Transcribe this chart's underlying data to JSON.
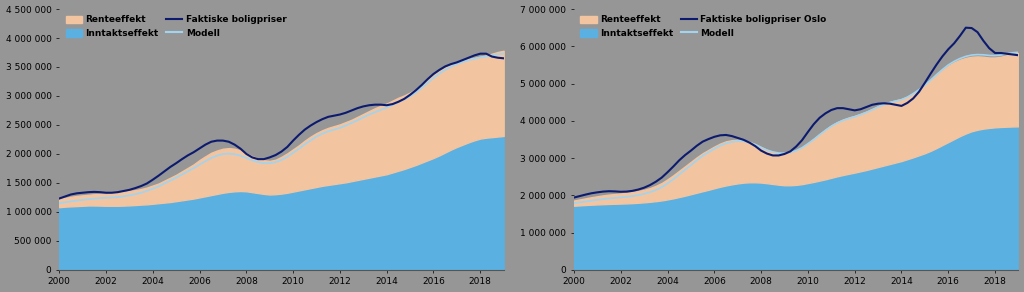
{
  "background_color": "#969696",
  "years_left": [
    2000.0,
    2000.25,
    2000.5,
    2000.75,
    2001.0,
    2001.25,
    2001.5,
    2001.75,
    2002.0,
    2002.25,
    2002.5,
    2002.75,
    2003.0,
    2003.25,
    2003.5,
    2003.75,
    2004.0,
    2004.25,
    2004.5,
    2004.75,
    2005.0,
    2005.25,
    2005.5,
    2005.75,
    2006.0,
    2006.25,
    2006.5,
    2006.75,
    2007.0,
    2007.25,
    2007.5,
    2007.75,
    2008.0,
    2008.25,
    2008.5,
    2008.75,
    2009.0,
    2009.25,
    2009.5,
    2009.75,
    2010.0,
    2010.25,
    2010.5,
    2010.75,
    2011.0,
    2011.25,
    2011.5,
    2011.75,
    2012.0,
    2012.25,
    2012.5,
    2012.75,
    2013.0,
    2013.25,
    2013.5,
    2013.75,
    2014.0,
    2014.25,
    2014.5,
    2014.75,
    2015.0,
    2015.25,
    2015.5,
    2015.75,
    2016.0,
    2016.25,
    2016.5,
    2016.75,
    2017.0,
    2017.25,
    2017.5,
    2017.75,
    2018.0,
    2018.25,
    2018.5,
    2018.75,
    2019.0
  ],
  "left_inntekt": [
    1080000,
    1090000,
    1095000,
    1100000,
    1105000,
    1110000,
    1110000,
    1108000,
    1105000,
    1105000,
    1105000,
    1108000,
    1112000,
    1118000,
    1125000,
    1130000,
    1140000,
    1150000,
    1160000,
    1170000,
    1185000,
    1200000,
    1215000,
    1230000,
    1250000,
    1270000,
    1290000,
    1310000,
    1330000,
    1345000,
    1355000,
    1360000,
    1355000,
    1340000,
    1325000,
    1310000,
    1300000,
    1305000,
    1315000,
    1330000,
    1350000,
    1370000,
    1390000,
    1410000,
    1430000,
    1450000,
    1465000,
    1480000,
    1495000,
    1510000,
    1530000,
    1550000,
    1570000,
    1590000,
    1610000,
    1630000,
    1650000,
    1680000,
    1710000,
    1740000,
    1775000,
    1810000,
    1850000,
    1890000,
    1930000,
    1975000,
    2025000,
    2075000,
    2120000,
    2160000,
    2200000,
    2235000,
    2265000,
    2280000,
    2290000,
    2300000,
    2310000
  ],
  "left_rente_top": [
    1220000,
    1240000,
    1260000,
    1275000,
    1285000,
    1295000,
    1305000,
    1310000,
    1315000,
    1320000,
    1330000,
    1345000,
    1360000,
    1375000,
    1395000,
    1420000,
    1455000,
    1490000,
    1540000,
    1590000,
    1640000,
    1700000,
    1760000,
    1820000,
    1895000,
    1960000,
    2020000,
    2060000,
    2090000,
    2100000,
    2090000,
    2060000,
    2010000,
    1960000,
    1920000,
    1890000,
    1880000,
    1900000,
    1950000,
    2010000,
    2080000,
    2150000,
    2230000,
    2300000,
    2360000,
    2410000,
    2450000,
    2480000,
    2510000,
    2550000,
    2590000,
    2640000,
    2690000,
    2740000,
    2790000,
    2830000,
    2870000,
    2920000,
    2970000,
    3010000,
    3060000,
    3120000,
    3200000,
    3280000,
    3360000,
    3430000,
    3490000,
    3540000,
    3580000,
    3610000,
    3640000,
    3660000,
    3680000,
    3700000,
    3730000,
    3760000,
    3780000
  ],
  "left_faktiske": [
    1230000,
    1265000,
    1300000,
    1320000,
    1330000,
    1340000,
    1345000,
    1340000,
    1330000,
    1330000,
    1340000,
    1360000,
    1380000,
    1410000,
    1445000,
    1490000,
    1555000,
    1625000,
    1700000,
    1775000,
    1840000,
    1910000,
    1975000,
    2030000,
    2095000,
    2160000,
    2210000,
    2230000,
    2230000,
    2210000,
    2160000,
    2090000,
    2000000,
    1940000,
    1910000,
    1910000,
    1940000,
    1980000,
    2040000,
    2120000,
    2230000,
    2330000,
    2420000,
    2490000,
    2550000,
    2600000,
    2640000,
    2660000,
    2680000,
    2710000,
    2750000,
    2790000,
    2820000,
    2840000,
    2850000,
    2850000,
    2840000,
    2860000,
    2900000,
    2950000,
    3020000,
    3100000,
    3190000,
    3290000,
    3380000,
    3450000,
    3510000,
    3550000,
    3580000,
    3620000,
    3660000,
    3700000,
    3730000,
    3730000,
    3680000,
    3660000,
    3650000
  ],
  "left_modell": [
    1150000,
    1165000,
    1180000,
    1195000,
    1207000,
    1218000,
    1228000,
    1237000,
    1243000,
    1248000,
    1255000,
    1268000,
    1284000,
    1305000,
    1330000,
    1362000,
    1400000,
    1440000,
    1490000,
    1540000,
    1590000,
    1645000,
    1700000,
    1755000,
    1815000,
    1875000,
    1930000,
    1970000,
    1998000,
    2005000,
    1995000,
    1970000,
    1930000,
    1890000,
    1858000,
    1840000,
    1840000,
    1858000,
    1895000,
    1950000,
    2020000,
    2090000,
    2165000,
    2235000,
    2300000,
    2350000,
    2390000,
    2420000,
    2450000,
    2490000,
    2535000,
    2580000,
    2630000,
    2680000,
    2720000,
    2760000,
    2800000,
    2845000,
    2895000,
    2940000,
    2995000,
    3060000,
    3140000,
    3225000,
    3310000,
    3385000,
    3450000,
    3505000,
    3550000,
    3585000,
    3615000,
    3640000,
    3665000,
    3680000,
    3700000,
    3720000,
    3730000
  ],
  "years_right": [
    2000.0,
    2000.25,
    2000.5,
    2000.75,
    2001.0,
    2001.25,
    2001.5,
    2001.75,
    2002.0,
    2002.25,
    2002.5,
    2002.75,
    2003.0,
    2003.25,
    2003.5,
    2003.75,
    2004.0,
    2004.25,
    2004.5,
    2004.75,
    2005.0,
    2005.25,
    2005.5,
    2005.75,
    2006.0,
    2006.25,
    2006.5,
    2006.75,
    2007.0,
    2007.25,
    2007.5,
    2007.75,
    2008.0,
    2008.25,
    2008.5,
    2008.75,
    2009.0,
    2009.25,
    2009.5,
    2009.75,
    2010.0,
    2010.25,
    2010.5,
    2010.75,
    2011.0,
    2011.25,
    2011.5,
    2011.75,
    2012.0,
    2012.25,
    2012.5,
    2012.75,
    2013.0,
    2013.25,
    2013.5,
    2013.75,
    2014.0,
    2014.25,
    2014.5,
    2014.75,
    2015.0,
    2015.25,
    2015.5,
    2015.75,
    2016.0,
    2016.25,
    2016.5,
    2016.75,
    2017.0,
    2017.25,
    2017.5,
    2017.75,
    2018.0,
    2018.25,
    2018.5,
    2018.75,
    2019.0
  ],
  "right_inntekt": [
    1720000,
    1730000,
    1740000,
    1748000,
    1755000,
    1762000,
    1768000,
    1773000,
    1778000,
    1783000,
    1790000,
    1800000,
    1812000,
    1826000,
    1843000,
    1863000,
    1890000,
    1920000,
    1955000,
    1990000,
    2030000,
    2070000,
    2110000,
    2148000,
    2190000,
    2230000,
    2265000,
    2295000,
    2320000,
    2340000,
    2350000,
    2350000,
    2342000,
    2325000,
    2305000,
    2285000,
    2270000,
    2270000,
    2280000,
    2300000,
    2330000,
    2360000,
    2395000,
    2430000,
    2470000,
    2510000,
    2545000,
    2578000,
    2610000,
    2645000,
    2680000,
    2720000,
    2760000,
    2800000,
    2840000,
    2880000,
    2920000,
    2970000,
    3020000,
    3075000,
    3130000,
    3195000,
    3270000,
    3350000,
    3430000,
    3510000,
    3590000,
    3660000,
    3720000,
    3760000,
    3790000,
    3810000,
    3825000,
    3835000,
    3842000,
    3848000,
    3852000
  ],
  "right_rente_top": [
    1860000,
    1890000,
    1920000,
    1950000,
    1975000,
    2000000,
    2020000,
    2035000,
    2050000,
    2065000,
    2085000,
    2115000,
    2148000,
    2195000,
    2255000,
    2330000,
    2430000,
    2540000,
    2660000,
    2780000,
    2900000,
    3020000,
    3130000,
    3220000,
    3310000,
    3390000,
    3450000,
    3480000,
    3490000,
    3475000,
    3435000,
    3375000,
    3295000,
    3220000,
    3165000,
    3130000,
    3120000,
    3145000,
    3200000,
    3285000,
    3395000,
    3515000,
    3645000,
    3765000,
    3875000,
    3965000,
    4035000,
    4090000,
    4135000,
    4190000,
    4250000,
    4320000,
    4395000,
    4460000,
    4510000,
    4550000,
    4585000,
    4650000,
    4740000,
    4840000,
    4960000,
    5090000,
    5230000,
    5360000,
    5480000,
    5570000,
    5640000,
    5690000,
    5720000,
    5730000,
    5720000,
    5700000,
    5700000,
    5720000,
    5760000,
    5800000,
    5820000
  ],
  "right_faktiske": [
    1940000,
    1980000,
    2020000,
    2055000,
    2080000,
    2100000,
    2110000,
    2105000,
    2095000,
    2100000,
    2120000,
    2155000,
    2205000,
    2275000,
    2365000,
    2475000,
    2620000,
    2775000,
    2940000,
    3080000,
    3200000,
    3330000,
    3440000,
    3510000,
    3570000,
    3610000,
    3620000,
    3590000,
    3540000,
    3490000,
    3415000,
    3320000,
    3200000,
    3120000,
    3070000,
    3070000,
    3110000,
    3180000,
    3310000,
    3480000,
    3700000,
    3910000,
    4080000,
    4200000,
    4290000,
    4340000,
    4340000,
    4310000,
    4280000,
    4310000,
    4370000,
    4430000,
    4460000,
    4470000,
    4460000,
    4430000,
    4400000,
    4480000,
    4600000,
    4780000,
    5020000,
    5270000,
    5510000,
    5730000,
    5920000,
    6080000,
    6280000,
    6500000,
    6490000,
    6380000,
    6150000,
    5950000,
    5820000,
    5820000,
    5800000,
    5780000,
    5760000
  ],
  "right_modell": [
    1790000,
    1810000,
    1833000,
    1858000,
    1878000,
    1898000,
    1915000,
    1930000,
    1945000,
    1960000,
    1978000,
    2005000,
    2038000,
    2082000,
    2142000,
    2218000,
    2320000,
    2435000,
    2560000,
    2685000,
    2810000,
    2940000,
    3060000,
    3155000,
    3250000,
    3330000,
    3395000,
    3433000,
    3455000,
    3450000,
    3415000,
    3360000,
    3285000,
    3215000,
    3165000,
    3135000,
    3130000,
    3152000,
    3200000,
    3278000,
    3385000,
    3500000,
    3625000,
    3745000,
    3855000,
    3942000,
    4010000,
    4062000,
    4107000,
    4162000,
    4225000,
    4295000,
    4370000,
    4435000,
    4488000,
    4530000,
    4568000,
    4635000,
    4730000,
    4835000,
    4960000,
    5095000,
    5240000,
    5375000,
    5500000,
    5595000,
    5672000,
    5730000,
    5765000,
    5778000,
    5772000,
    5755000,
    5750000,
    5765000,
    5798000,
    5826000,
    5840000
  ],
  "left_ylim": [
    0,
    4500000
  ],
  "left_yticks": [
    0,
    500000,
    1000000,
    1500000,
    2000000,
    2500000,
    3000000,
    3500000,
    4000000,
    4500000
  ],
  "right_ylim": [
    0,
    7000000
  ],
  "right_yticks": [
    0,
    1000000,
    2000000,
    3000000,
    4000000,
    5000000,
    6000000,
    7000000
  ],
  "xtick_years": [
    2000,
    2002,
    2004,
    2006,
    2008,
    2010,
    2012,
    2014,
    2016,
    2018
  ],
  "rente_color": "#f2c4a0",
  "inntekt_color": "#5ab0e0",
  "faktiske_color": "#0d1b6e",
  "modell_color": "#a0d4f0",
  "left_legend": [
    "Renteeffekt",
    "Inntaktseffekt",
    "Faktiske boligpriser",
    "Modell"
  ],
  "right_legend": [
    "Renteeffekt",
    "Inntaktseffekt",
    "Faktiske boligpriser Oslo",
    "Modell"
  ]
}
